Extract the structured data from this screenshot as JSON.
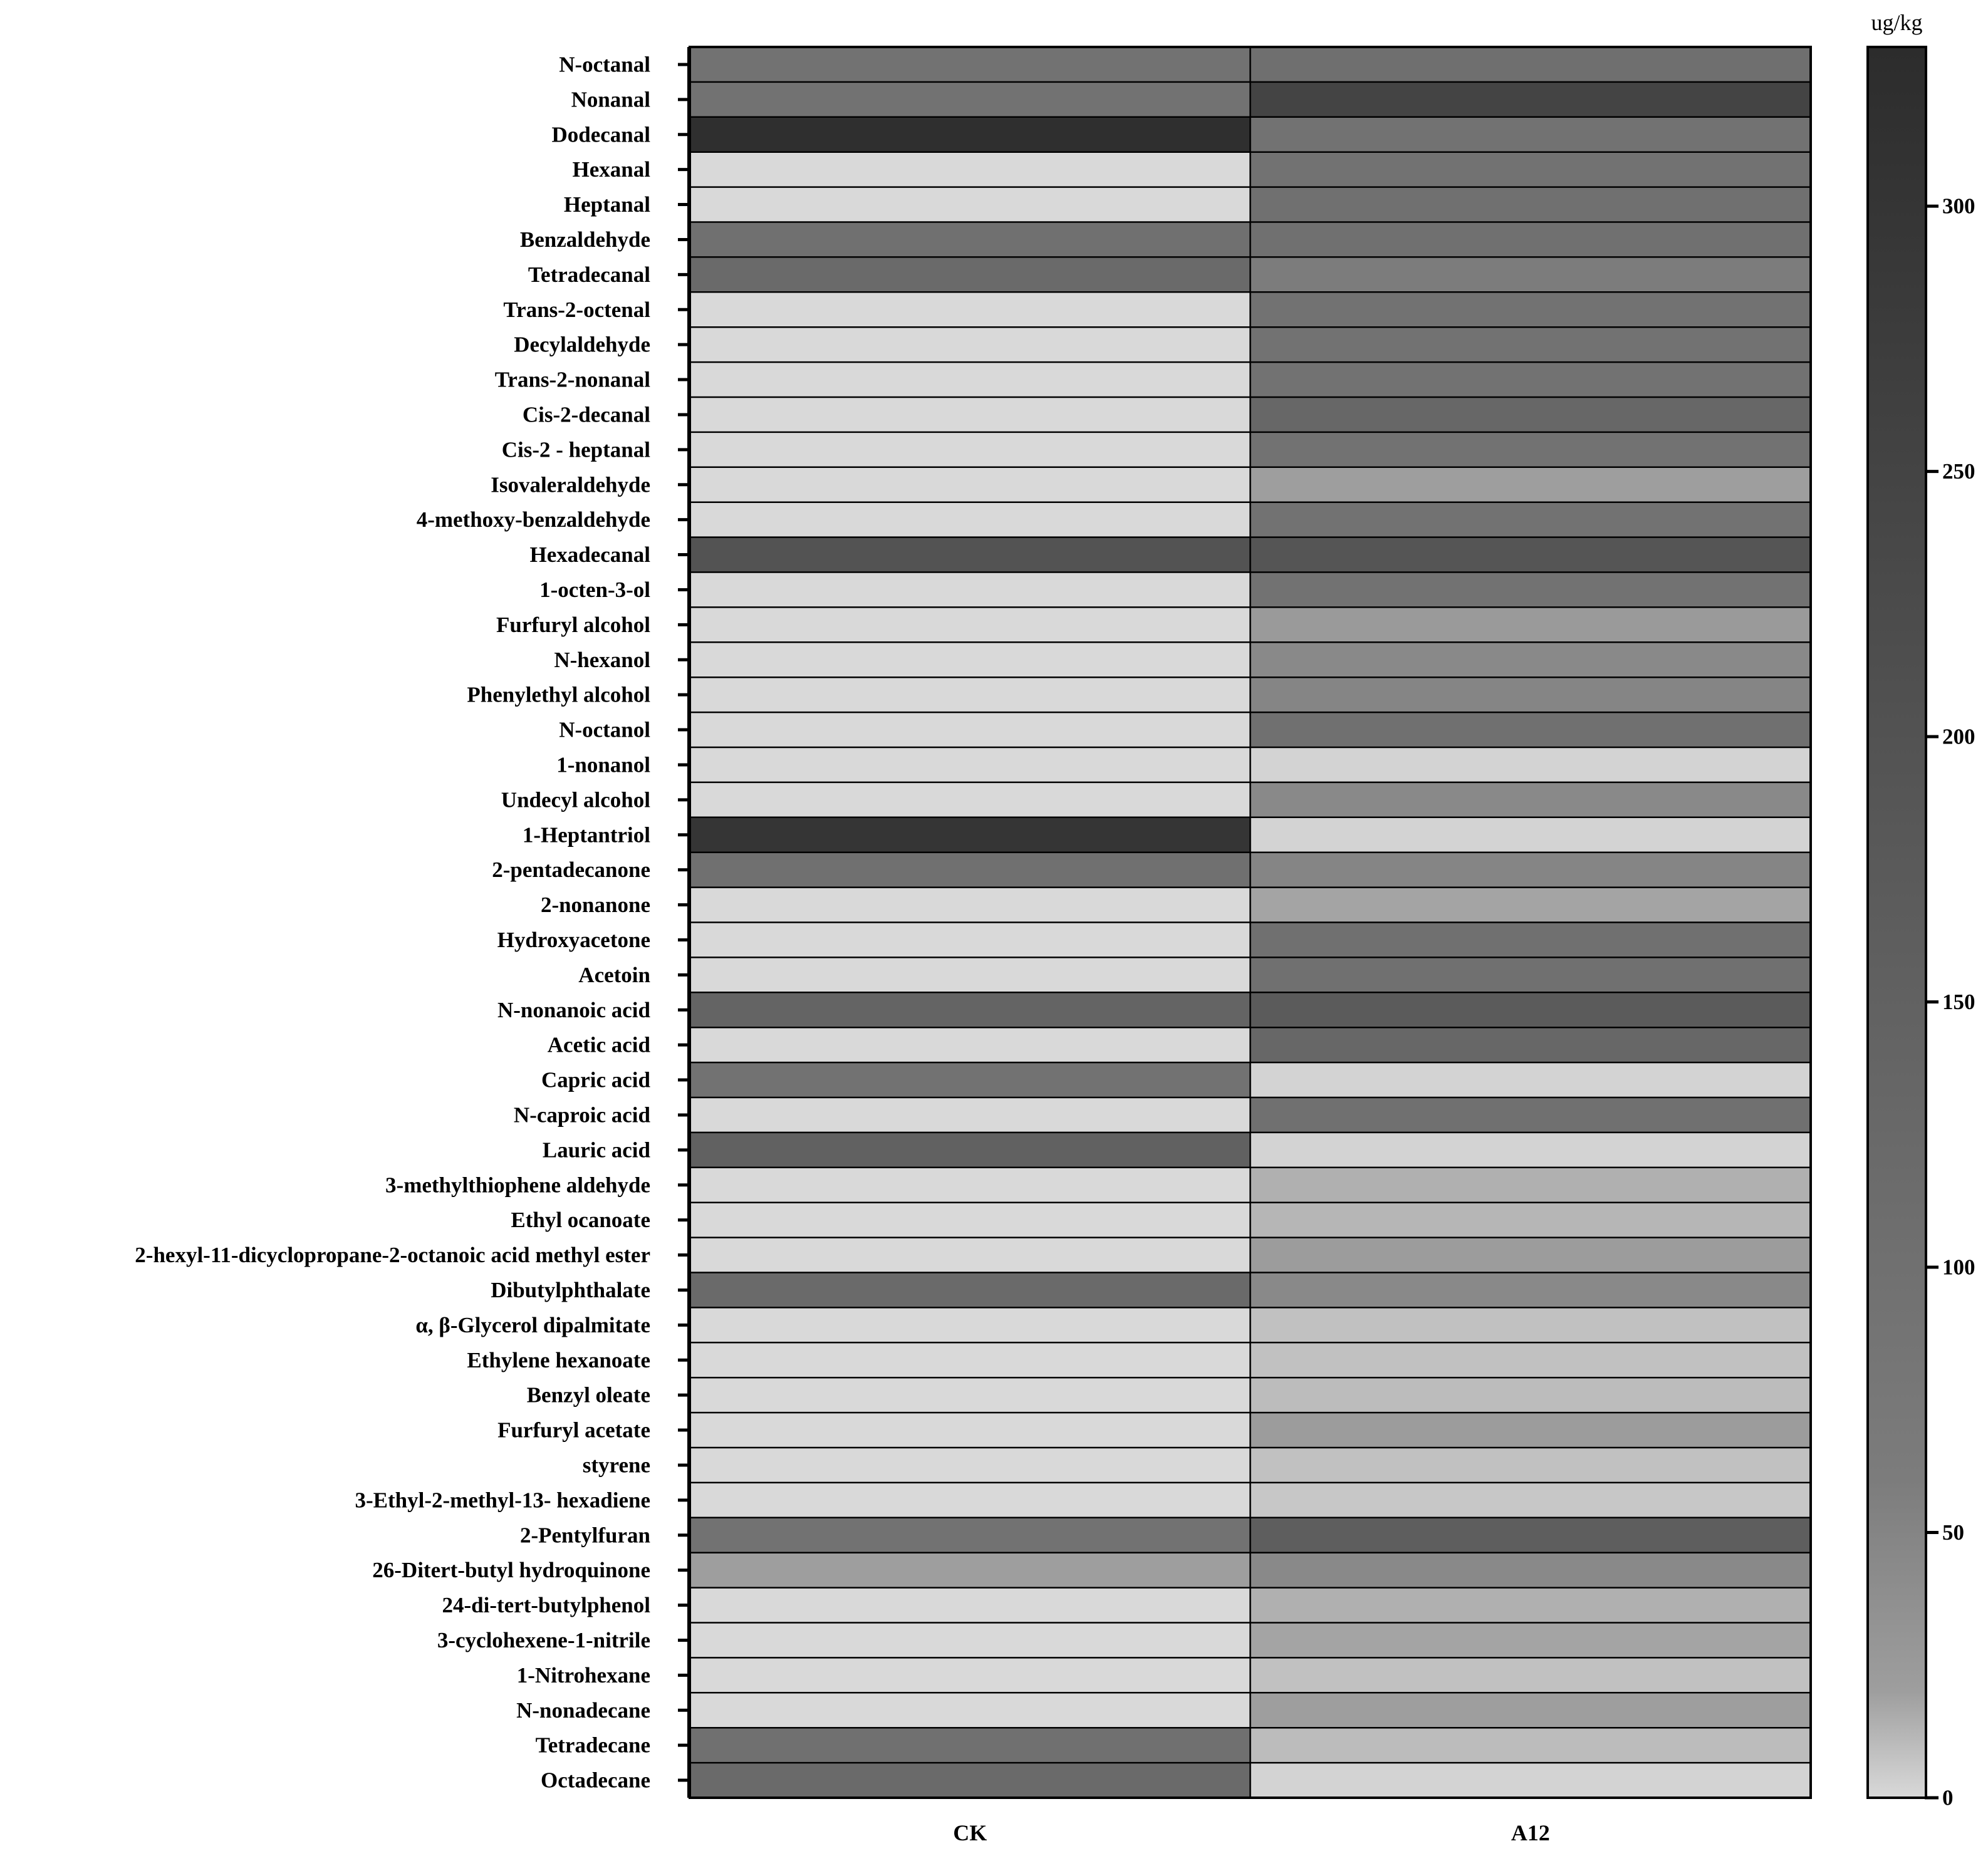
{
  "chart_data": {
    "type": "heatmap",
    "title": "",
    "columns": [
      "CK",
      "A12"
    ],
    "rows": [
      "N-octanal",
      "Nonanal",
      "Dodecanal",
      "Hexanal",
      "Heptanal",
      "Benzaldehyde",
      "Tetradecanal",
      "Trans-2-octenal",
      "Decylaldehyde",
      "Trans-2-nonanal",
      "Cis-2-decanal",
      "Cis-2 - heptanal",
      "Isovaleraldehyde",
      "4-methoxy-benzaldehyde",
      "Hexadecanal",
      "1-octen-3-ol",
      "Furfuryl alcohol",
      "N-hexanol",
      "Phenylethyl alcohol",
      "N-octanol",
      "1-nonanol",
      "Undecyl alcohol",
      "1-Heptantriol",
      "2-pentadecanone",
      "2-nonanone",
      "Hydroxyacetone",
      "Acetoin",
      "N-nonanoic acid",
      "Acetic acid",
      "Capric acid",
      "N-caproic acid",
      "Lauric acid",
      "3-methylthiophene aldehyde",
      "Ethyl ocanoate",
      "2-hexyl-11-dicyclopropane-2-octanoic acid methyl ester",
      "Dibutylphthalate",
      "α, β-Glycerol dipalmitate",
      "Ethylene hexanoate",
      "Benzyl oleate",
      "Furfuryl acetate",
      "styrene",
      "3-Ethyl-2-methyl-13- hexadiene",
      "2-Pentylfuran",
      "26-Ditert-butyl hydroquinone",
      "24-di-tert-butylphenol",
      "3-cyclohexene-1-nitrile",
      "1-Nitrohexane",
      "N-nonadecane",
      "Tetradecane",
      "Octadecane"
    ],
    "values": [
      [
        95,
        105
      ],
      [
        95,
        250
      ],
      [
        320,
        95
      ],
      [
        0,
        95
      ],
      [
        0,
        100
      ],
      [
        100,
        100
      ],
      [
        120,
        60
      ],
      [
        0,
        95
      ],
      [
        0,
        95
      ],
      [
        0,
        95
      ],
      [
        0,
        130
      ],
      [
        0,
        95
      ],
      [
        0,
        20
      ],
      [
        0,
        95
      ],
      [
        200,
        190
      ],
      [
        0,
        95
      ],
      [
        0,
        25
      ],
      [
        0,
        45
      ],
      [
        0,
        50
      ],
      [
        0,
        100
      ],
      [
        0,
        2
      ],
      [
        0,
        45
      ],
      [
        300,
        2
      ],
      [
        100,
        50
      ],
      [
        0,
        18
      ],
      [
        0,
        100
      ],
      [
        0,
        100
      ],
      [
        140,
        170
      ],
      [
        0,
        130
      ],
      [
        95,
        2
      ],
      [
        0,
        100
      ],
      [
        150,
        2
      ],
      [
        0,
        14
      ],
      [
        0,
        12
      ],
      [
        0,
        22
      ],
      [
        120,
        45
      ],
      [
        0,
        8
      ],
      [
        0,
        8
      ],
      [
        0,
        10
      ],
      [
        0,
        22
      ],
      [
        0,
        8
      ],
      [
        0,
        6
      ],
      [
        95,
        160
      ],
      [
        20,
        45
      ],
      [
        0,
        14
      ],
      [
        0,
        18
      ],
      [
        0,
        8
      ],
      [
        0,
        20
      ],
      [
        100,
        10
      ],
      [
        120,
        2
      ]
    ],
    "colorbar": {
      "unit": "ug/kg",
      "min": 0,
      "max": 330,
      "ticks": [
        0,
        50,
        100,
        150,
        200,
        250,
        300
      ],
      "stops": [
        {
          "value": 0,
          "color": "#d9d9d9"
        },
        {
          "value": 20,
          "color": "#9e9e9e"
        },
        {
          "value": 60,
          "color": "#7c7c7c"
        },
        {
          "value": 330,
          "color": "#2c2c2c"
        }
      ]
    },
    "xlabel": "",
    "ylabel": ""
  }
}
